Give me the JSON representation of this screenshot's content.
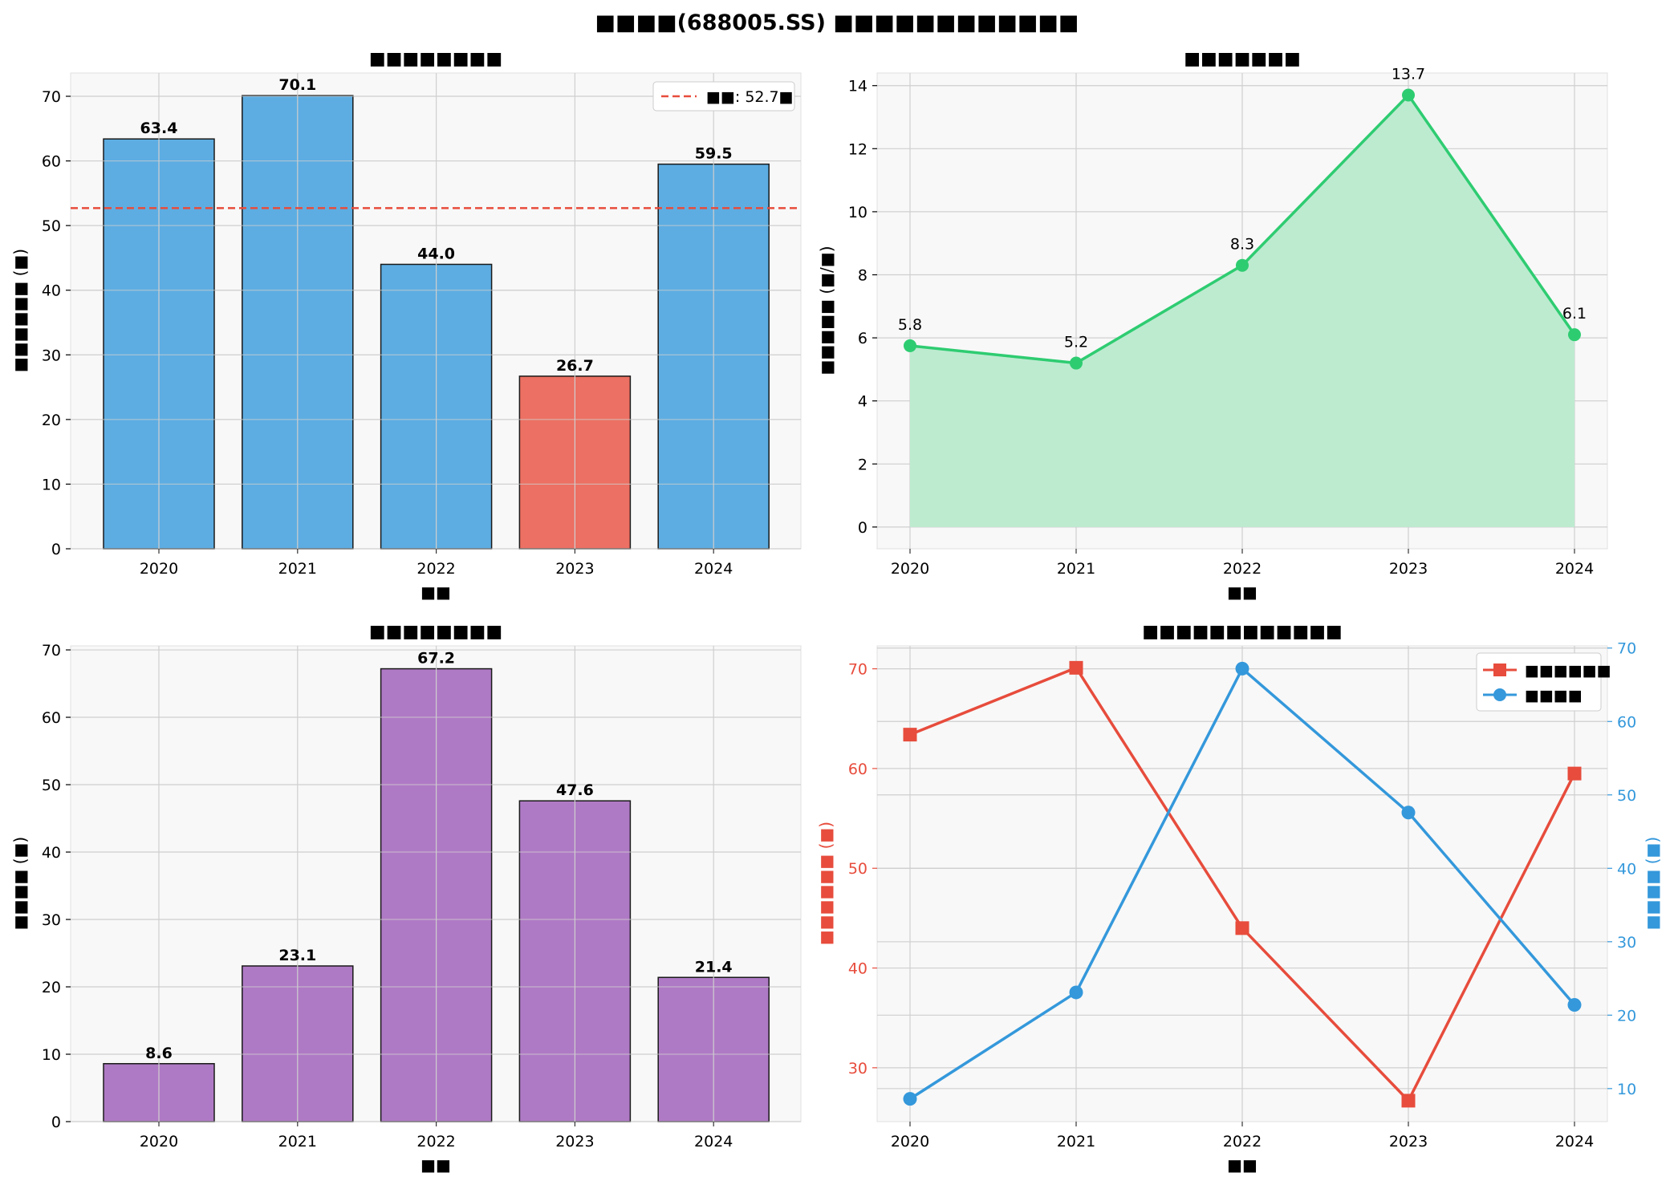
{
  "suptitle": "■■■■(688005.SS) ■■■■■■■■■■■■",
  "chart_data": [
    {
      "type": "bar",
      "title": "■■■■■■■■",
      "xlabel": "■■",
      "ylabel": "■■■■■■ (■)",
      "categories": [
        "2020",
        "2021",
        "2022",
        "2023",
        "2024"
      ],
      "values": [
        63.4,
        70.1,
        44.0,
        26.7,
        59.5
      ],
      "value_labels": [
        "63.4",
        "70.1",
        "44.0",
        "26.7",
        "59.5"
      ],
      "ylim": [
        0,
        73.6
      ],
      "yticks": [
        0,
        10,
        20,
        30,
        40,
        50,
        60,
        70
      ],
      "bar_colors": [
        "#5dade2",
        "#5dade2",
        "#5dade2",
        "#ec7063",
        "#5dade2"
      ],
      "mean_line": {
        "value": 52.7,
        "label": "■■: 52.7■",
        "color": "#e74c3c"
      },
      "legend": "top-right",
      "grid": true
    },
    {
      "type": "area",
      "title": "■■■■■■■",
      "xlabel": "■■",
      "ylabel": "■■■■■ (■/■)",
      "categories": [
        "2020",
        "2021",
        "2022",
        "2023",
        "2024"
      ],
      "values": [
        5.75,
        5.2,
        8.3,
        13.7,
        6.1
      ],
      "value_labels": [
        "5.8",
        "5.2",
        "8.3",
        "13.7",
        "6.1"
      ],
      "ylim": [
        -0.69,
        14.4
      ],
      "yticks": [
        0,
        2,
        4,
        6,
        8,
        10,
        12,
        14
      ],
      "line_color": "#2ecc71",
      "fill_color": "#bdebd0",
      "grid": true
    },
    {
      "type": "bar",
      "title": "■■■■■■■■",
      "xlabel": "■■",
      "ylabel": "■■■■ (■)",
      "categories": [
        "2020",
        "2021",
        "2022",
        "2023",
        "2024"
      ],
      "values": [
        8.6,
        23.1,
        67.2,
        47.6,
        21.4
      ],
      "value_labels": [
        "8.6",
        "23.1",
        "67.2",
        "47.6",
        "21.4"
      ],
      "ylim": [
        0,
        70.6
      ],
      "yticks": [
        0,
        10,
        20,
        30,
        40,
        50,
        60,
        70
      ],
      "bar_colors": [
        "#af7ac5",
        "#af7ac5",
        "#af7ac5",
        "#af7ac5",
        "#af7ac5"
      ],
      "grid": true
    },
    {
      "type": "line",
      "title": "■■■■■■■■■■■■",
      "xlabel": "■■",
      "categories": [
        "2020",
        "2021",
        "2022",
        "2023",
        "2024"
      ],
      "series": [
        {
          "name": "■■■■■■",
          "values": [
            63.4,
            70.1,
            44.0,
            26.7,
            59.5
          ],
          "color": "#e74c3c",
          "marker": "square",
          "axis": "left"
        },
        {
          "name": "■■■■",
          "values": [
            8.6,
            23.1,
            67.2,
            47.6,
            21.4
          ],
          "color": "#3498db",
          "marker": "circle",
          "axis": "right"
        }
      ],
      "ylabel_left": "■■■■■■ (■)",
      "ylabel_right": "■■■■ (■)",
      "ylim_left": [
        24.6,
        72.3
      ],
      "ylim_right": [
        5.5,
        70.3
      ],
      "yticks_left": [
        30,
        40,
        50,
        60,
        70
      ],
      "yticks_right": [
        10,
        20,
        30,
        40,
        50,
        60,
        70
      ],
      "legend": "top-right",
      "grid": true
    }
  ]
}
